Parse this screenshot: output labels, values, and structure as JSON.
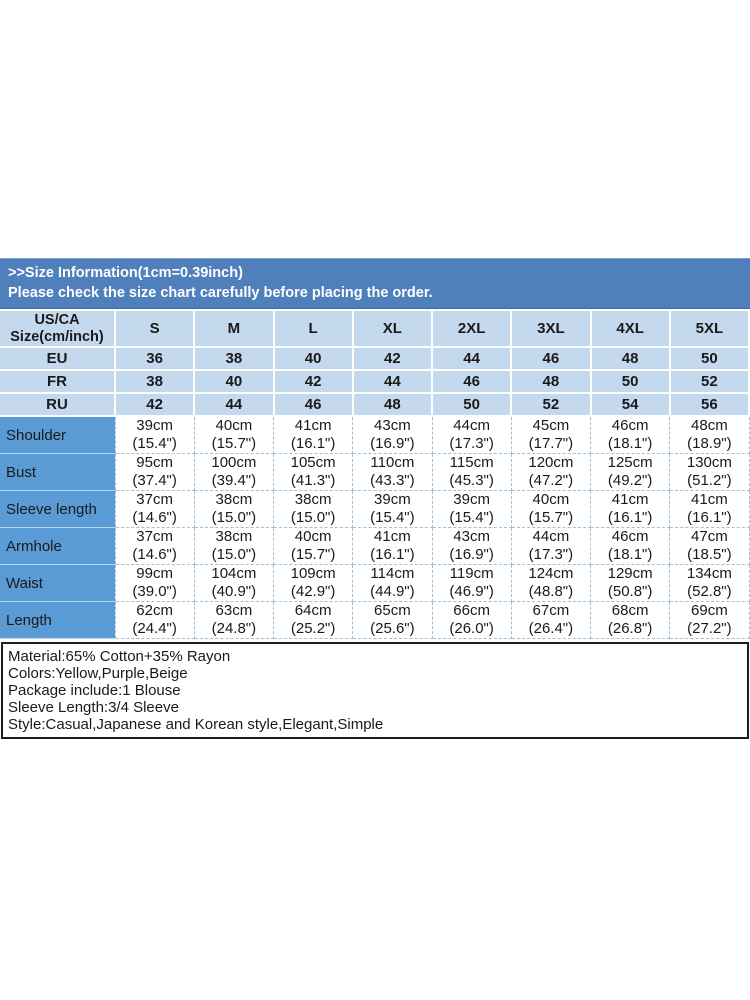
{
  "banner": {
    "line1": ">>Size Information(1cm=0.39inch)",
    "line2": "Please check the size chart carefully before placing the order."
  },
  "size_table": {
    "corner_header": "US/CA\nSize(cm/inch)",
    "size_columns": [
      "S",
      "M",
      "L",
      "XL",
      "2XL",
      "3XL",
      "4XL",
      "5XL"
    ],
    "region_rows": [
      {
        "label": "EU",
        "values": [
          "36",
          "38",
          "40",
          "42",
          "44",
          "46",
          "48",
          "50"
        ]
      },
      {
        "label": "FR",
        "values": [
          "38",
          "40",
          "42",
          "44",
          "46",
          "48",
          "50",
          "52"
        ]
      },
      {
        "label": "RU",
        "values": [
          "42",
          "44",
          "46",
          "48",
          "50",
          "52",
          "54",
          "56"
        ]
      }
    ],
    "measurement_rows": [
      {
        "label": "Shoulder",
        "values": [
          "39cm\n(15.4\")",
          "40cm\n(15.7\")",
          "41cm\n(16.1\")",
          "43cm\n(16.9\")",
          "44cm\n(17.3\")",
          "45cm\n(17.7\")",
          "46cm\n(18.1\")",
          "48cm\n(18.9\")"
        ]
      },
      {
        "label": "Bust",
        "values": [
          "95cm\n(37.4\")",
          "100cm\n(39.4\")",
          "105cm\n(41.3\")",
          "110cm\n(43.3\")",
          "115cm\n(45.3\")",
          "120cm\n(47.2\")",
          "125cm\n(49.2\")",
          "130cm\n(51.2\")"
        ]
      },
      {
        "label": "Sleeve length",
        "values": [
          "37cm\n(14.6\")",
          "38cm\n(15.0\")",
          "38cm\n(15.0\")",
          "39cm\n(15.4\")",
          "39cm\n(15.4\")",
          "40cm\n(15.7\")",
          "41cm\n(16.1\")",
          "41cm\n(16.1\")"
        ]
      },
      {
        "label": "Armhole",
        "values": [
          "37cm\n(14.6\")",
          "38cm\n(15.0\")",
          "40cm\n(15.7\")",
          "41cm\n(16.1\")",
          "43cm\n(16.9\")",
          "44cm\n(17.3\")",
          "46cm\n(18.1\")",
          "47cm\n(18.5\")"
        ]
      },
      {
        "label": "Waist",
        "values": [
          "99cm\n(39.0\")",
          "104cm\n(40.9\")",
          "109cm\n(42.9\")",
          "114cm\n(44.9\")",
          "119cm\n(46.9\")",
          "124cm\n(48.8\")",
          "129cm\n(50.8\")",
          "134cm\n(52.8\")"
        ]
      },
      {
        "label": "Length",
        "values": [
          "62cm\n(24.4\")",
          "63cm\n(24.8\")",
          "64cm\n(25.2\")",
          "65cm\n(25.6\")",
          "66cm\n(26.0\")",
          "67cm\n(26.4\")",
          "68cm\n(26.8\")",
          "69cm\n(27.2\")"
        ]
      }
    ]
  },
  "product_info": {
    "lines": [
      "Material:65% Cotton+35% Rayon",
      "Colors:Yellow,Purple,Beige",
      "Package include:1 Blouse",
      "Sleeve Length:3/4 Sleeve",
      "Style:Casual,Japanese and Korean style,Elegant,Simple"
    ]
  },
  "colors": {
    "banner_blue": "#5080bc",
    "header_light_blue": "#c5d9ee",
    "label_column_blue": "#5b9bd5",
    "grid_line_blue": "#9cc0e2",
    "info_box_border": "#1c1c1c",
    "text_black": "#1a1a1a",
    "banner_text_white": "#ffffff"
  }
}
